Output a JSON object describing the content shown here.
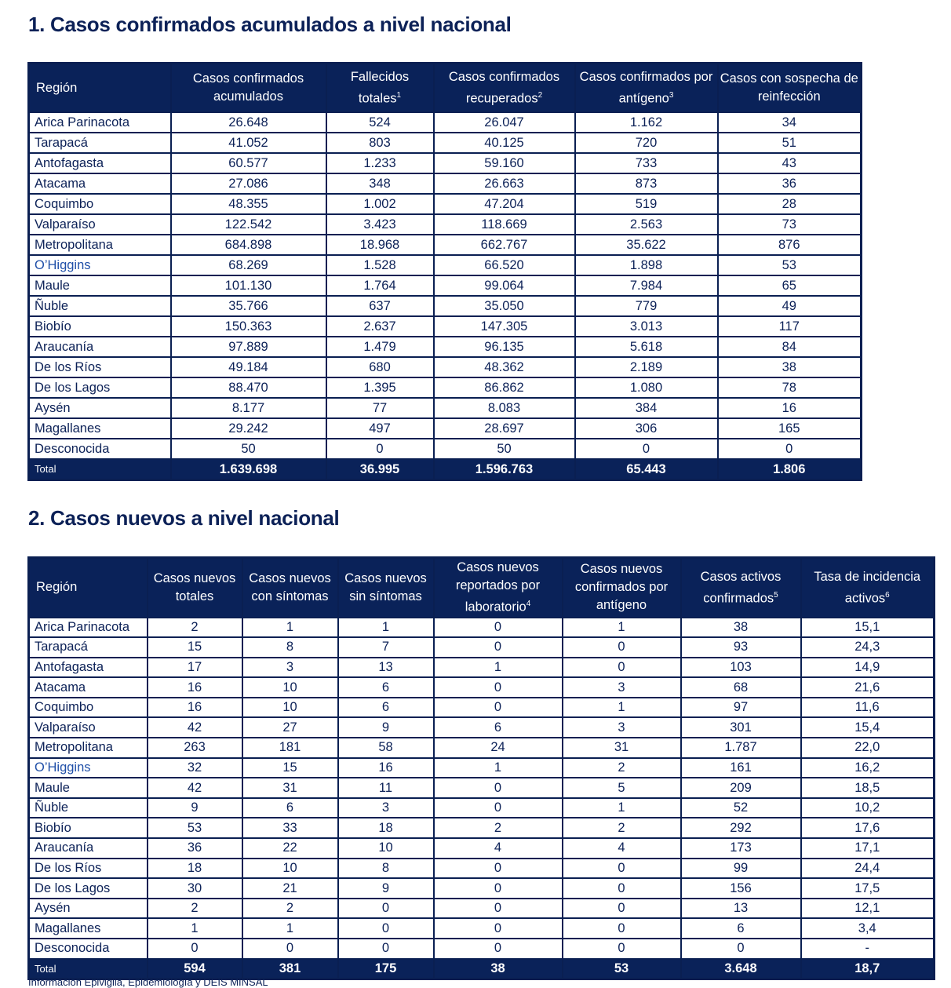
{
  "section1": {
    "title": "1. Casos confirmados acumulados a nivel nacional",
    "headers": [
      [
        "Región",
        ""
      ],
      [
        "Casos confirmados acumulados",
        ""
      ],
      [
        "Fallecidos totales",
        "1"
      ],
      [
        "Casos confirmados recuperados",
        "2"
      ],
      [
        "Casos confirmados por antígeno",
        "3"
      ],
      [
        "Casos con sospecha de reinfección",
        ""
      ]
    ],
    "rows": [
      [
        "Arica Parinacota",
        "26.648",
        "524",
        "26.047",
        "1.162",
        "34"
      ],
      [
        "Tarapacá",
        "41.052",
        "803",
        "40.125",
        "720",
        "51"
      ],
      [
        "Antofagasta",
        "60.577",
        "1.233",
        "59.160",
        "733",
        "43"
      ],
      [
        "Atacama",
        "27.086",
        "348",
        "26.663",
        "873",
        "36"
      ],
      [
        "Coquimbo",
        "48.355",
        "1.002",
        "47.204",
        "519",
        "28"
      ],
      [
        "Valparaíso",
        "122.542",
        "3.423",
        "118.669",
        "2.563",
        "73"
      ],
      [
        "Metropolitana",
        "684.898",
        "18.968",
        "662.767",
        "35.622",
        "876"
      ],
      [
        "O’Higgins",
        "68.269",
        "1.528",
        "66.520",
        "1.898",
        "53"
      ],
      [
        "Maule",
        "101.130",
        "1.764",
        "99.064",
        "7.984",
        "65"
      ],
      [
        "Ñuble",
        "35.766",
        "637",
        "35.050",
        "779",
        "49"
      ],
      [
        "Biobío",
        "150.363",
        "2.637",
        "147.305",
        "3.013",
        "117"
      ],
      [
        "Araucanía",
        "97.889",
        "1.479",
        "96.135",
        "5.618",
        "84"
      ],
      [
        "De los Ríos",
        "49.184",
        "680",
        "48.362",
        "2.189",
        "38"
      ],
      [
        "De los Lagos",
        "88.470",
        "1.395",
        "86.862",
        "1.080",
        "78"
      ],
      [
        "Aysén",
        "8.177",
        "77",
        "8.083",
        "384",
        "16"
      ],
      [
        "Magallanes",
        "29.242",
        "497",
        "28.697",
        "306",
        "165"
      ],
      [
        "Desconocida",
        "50",
        "0",
        "50",
        "0",
        "0"
      ]
    ],
    "total": [
      "Total",
      "1.639.698",
      "36.995",
      "1.596.763",
      "65.443",
      "1.806"
    ]
  },
  "section2": {
    "title": "2. Casos nuevos a nivel nacional",
    "headers": [
      [
        "Región",
        ""
      ],
      [
        "Casos nuevos totales",
        ""
      ],
      [
        "Casos nuevos con síntomas",
        ""
      ],
      [
        "Casos nuevos sin síntomas",
        ""
      ],
      [
        "Casos nuevos reportados por laboratorio",
        "4"
      ],
      [
        "Casos nuevos confirmados por antígeno",
        ""
      ],
      [
        "Casos activos confirmados",
        "5"
      ],
      [
        "Tasa de incidencia activos",
        "6"
      ]
    ],
    "rows": [
      [
        "Arica Parinacota",
        "2",
        "1",
        "1",
        "0",
        "1",
        "38",
        "15,1"
      ],
      [
        "Tarapacá",
        "15",
        "8",
        "7",
        "0",
        "0",
        "93",
        "24,3"
      ],
      [
        "Antofagasta",
        "17",
        "3",
        "13",
        "1",
        "0",
        "103",
        "14,9"
      ],
      [
        "Atacama",
        "16",
        "10",
        "6",
        "0",
        "3",
        "68",
        "21,6"
      ],
      [
        "Coquimbo",
        "16",
        "10",
        "6",
        "0",
        "1",
        "97",
        "11,6"
      ],
      [
        "Valparaíso",
        "42",
        "27",
        "9",
        "6",
        "3",
        "301",
        "15,4"
      ],
      [
        "Metropolitana",
        "263",
        "181",
        "58",
        "24",
        "31",
        "1.787",
        "22,0"
      ],
      [
        "O’Higgins",
        "32",
        "15",
        "16",
        "1",
        "2",
        "161",
        "16,2"
      ],
      [
        "Maule",
        "42",
        "31",
        "11",
        "0",
        "5",
        "209",
        "18,5"
      ],
      [
        "Ñuble",
        "9",
        "6",
        "3",
        "0",
        "1",
        "52",
        "10,2"
      ],
      [
        "Biobío",
        "53",
        "33",
        "18",
        "2",
        "2",
        "292",
        "17,6"
      ],
      [
        "Araucanía",
        "36",
        "22",
        "10",
        "4",
        "4",
        "173",
        "17,1"
      ],
      [
        "De los Ríos",
        "18",
        "10",
        "8",
        "0",
        "0",
        "99",
        "24,4"
      ],
      [
        "De los Lagos",
        "30",
        "21",
        "9",
        "0",
        "0",
        "156",
        "17,5"
      ],
      [
        "Aysén",
        "2",
        "2",
        "0",
        "0",
        "0",
        "13",
        "12,1"
      ],
      [
        "Magallanes",
        "1",
        "1",
        "0",
        "0",
        "0",
        "6",
        "3,4"
      ],
      [
        "Desconocida",
        "0",
        "0",
        "0",
        "0",
        "0",
        "0",
        "-"
      ]
    ],
    "total": [
      "Total",
      "594",
      "381",
      "175",
      "38",
      "53",
      "3.648",
      "18,7"
    ]
  },
  "footnote": "Información Epivigila, Epidemiología y DEIS MINSAL"
}
